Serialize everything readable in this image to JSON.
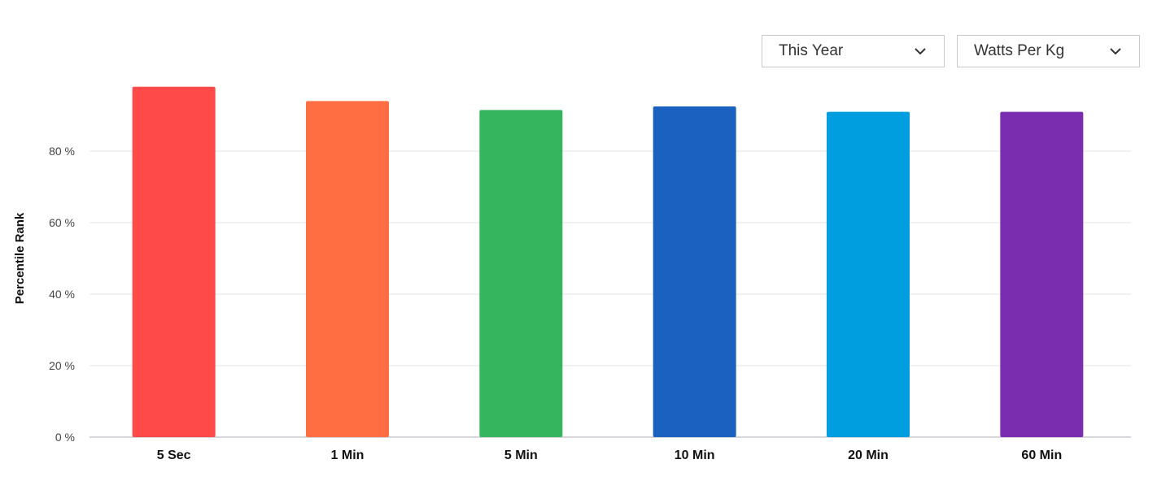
{
  "controls": {
    "period": {
      "selected": "This Year"
    },
    "metric": {
      "selected": "Watts Per Kg"
    }
  },
  "chart_data": {
    "type": "bar",
    "title": "",
    "xlabel": "",
    "ylabel": "Percentile Rank",
    "ylim": [
      0,
      100
    ],
    "yticks": [
      0,
      20,
      40,
      60,
      80
    ],
    "ytick_labels": [
      "0 %",
      "20 %",
      "40 %",
      "60 %",
      "80 %"
    ],
    "grid": true,
    "categories": [
      "5 Sec",
      "1 Min",
      "5 Min",
      "10 Min",
      "20 Min",
      "60 Min"
    ],
    "values": [
      98,
      94,
      91.5,
      92.5,
      91,
      91
    ],
    "colors": [
      "#ff4a4a",
      "#ff6e43",
      "#34b55e",
      "#1b62c0",
      "#009ddf",
      "#7b2db0"
    ]
  }
}
